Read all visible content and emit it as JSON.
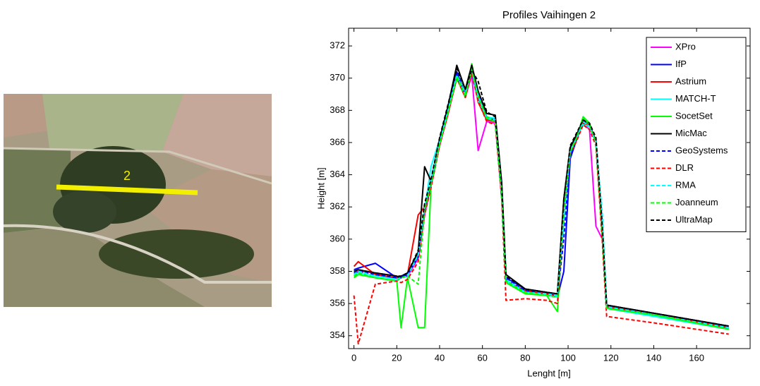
{
  "image": {
    "label": "2"
  },
  "chart_data": {
    "type": "line",
    "title": "Profiles Vaihingen 2",
    "xlabel": "Lenght [m]",
    "ylabel": "Height [m]",
    "xlim": [
      -2.5,
      185
    ],
    "xticks": [
      0,
      20,
      40,
      60,
      80,
      100,
      120,
      140,
      160
    ],
    "ylim": [
      353.2,
      373.1
    ],
    "yticks": [
      354,
      356,
      358,
      360,
      362,
      364,
      366,
      368,
      370,
      372
    ],
    "legend": "upper right",
    "x": [
      0,
      2,
      10,
      20,
      22,
      25,
      30,
      33,
      36,
      40,
      44,
      48,
      52,
      55,
      58,
      62,
      66,
      69,
      71,
      80,
      90,
      95,
      98,
      101,
      104,
      107,
      110,
      113,
      116,
      118,
      140,
      175
    ],
    "series": [
      {
        "name": "XPro",
        "color": "#ff00ff",
        "linestyle": "solid",
        "values": [
          357.8,
          358,
          357.9,
          357.5,
          357.6,
          357.7,
          358.8,
          361.5,
          363.4,
          365.8,
          367.8,
          370,
          368.8,
          370.2,
          365.5,
          367.3,
          367.2,
          362.5,
          357.4,
          356.8,
          356.6,
          356.5,
          361.5,
          365.3,
          366.2,
          367.2,
          366.8,
          360.8,
          360,
          355.8,
          355.3,
          354.5
        ]
      },
      {
        "name": "IfP",
        "color": "#0000ff",
        "linestyle": "solid",
        "values": [
          358.1,
          358.2,
          358.5,
          357.6,
          357.7,
          357.9,
          358.9,
          361.8,
          363.4,
          365.9,
          368.1,
          370.4,
          369,
          370.5,
          368.8,
          367.6,
          367.4,
          363.2,
          357.6,
          356.9,
          356.7,
          356.4,
          358,
          365,
          366.2,
          367.4,
          367.1,
          366,
          360.5,
          355.9,
          355.4,
          354.6
        ]
      },
      {
        "name": "Astrium",
        "color": "#ff0000",
        "linestyle": "solid",
        "values": [
          358.3,
          358.6,
          357.8,
          357.6,
          357.6,
          357.8,
          361.5,
          362,
          363.5,
          366,
          368,
          370.2,
          369.1,
          370.4,
          368.5,
          367.4,
          367.3,
          363,
          357.3,
          356.8,
          356.6,
          356.4,
          362.2,
          365.6,
          366.3,
          367.2,
          367,
          366,
          360,
          355.8,
          355.3,
          354.5
        ]
      },
      {
        "name": "MATCH-T",
        "color": "#00ffff",
        "linestyle": "solid",
        "values": [
          357.7,
          357.9,
          357.7,
          357.5,
          357.6,
          357.8,
          359,
          361.8,
          364.5,
          366.2,
          368.1,
          370.2,
          369.1,
          370.5,
          368.6,
          367.6,
          367.5,
          363.2,
          357.4,
          356.7,
          356.5,
          356.4,
          361,
          365.5,
          366.3,
          367.1,
          367,
          366,
          361,
          355.7,
          355.2,
          354.4
        ]
      },
      {
        "name": "SocetSet",
        "color": "#00ff00",
        "linestyle": "solid",
        "values": [
          357.6,
          357.8,
          357.6,
          357.4,
          354.5,
          357.6,
          354.5,
          354.5,
          363.3,
          365.9,
          367.9,
          370,
          368.8,
          370.9,
          368.9,
          367.6,
          367.3,
          362.8,
          357.3,
          356.6,
          356.5,
          355.5,
          361.8,
          365.4,
          366.3,
          367.6,
          367.2,
          366,
          360,
          355.7,
          355.3,
          354.4
        ]
      },
      {
        "name": "MicMac",
        "color": "#000000",
        "linestyle": "solid",
        "values": [
          358,
          358.1,
          357.9,
          357.7,
          357.6,
          357.9,
          359.2,
          364.5,
          363.6,
          366.2,
          368.3,
          370.8,
          369.3,
          370.8,
          369.2,
          367.8,
          367.7,
          363.5,
          357.8,
          356.9,
          356.7,
          356.6,
          362.5,
          365.7,
          366.5,
          367.4,
          367.1,
          366.1,
          360.5,
          355.9,
          355.4,
          354.6
        ]
      },
      {
        "name": "GeoSystems",
        "color": "#0000ff",
        "linestyle": "dashed",
        "values": [
          357.9,
          358,
          357.8,
          357.6,
          357.6,
          357.8,
          358.9,
          361.9,
          363.5,
          366,
          368,
          370.3,
          369,
          370.5,
          369,
          367.5,
          367.4,
          363,
          357.5,
          356.8,
          356.6,
          356.5,
          360,
          365.2,
          366.3,
          367.3,
          367,
          366,
          360.5,
          355.8,
          355.3,
          354.5
        ]
      },
      {
        "name": "DLR",
        "color": "#ff0000",
        "linestyle": "dashed",
        "values": [
          356.5,
          353.5,
          357.2,
          357.4,
          357.3,
          357.5,
          358.6,
          361.5,
          363.2,
          365.8,
          367.8,
          370,
          368.8,
          370.3,
          368.6,
          367.3,
          367.1,
          362.5,
          356.2,
          356.3,
          356.2,
          356,
          361.7,
          365.3,
          366.1,
          367.1,
          366.8,
          365.8,
          359.8,
          355.2,
          354.8,
          354.1
        ]
      },
      {
        "name": "RMA",
        "color": "#00ffff",
        "linestyle": "dashed",
        "values": [
          357.8,
          358,
          357.7,
          357.5,
          357.6,
          357.7,
          359,
          362,
          363.6,
          366,
          368,
          370.2,
          369,
          370.5,
          368.9,
          367.5,
          367.4,
          362.9,
          357.5,
          356.7,
          356.6,
          356.5,
          361.5,
          365.4,
          366.3,
          367.3,
          367,
          366,
          361.5,
          355.8,
          355.3,
          354.5
        ]
      },
      {
        "name": "Joanneum",
        "color": "#00ff00",
        "linestyle": "dashed",
        "values": [
          357.7,
          357.9,
          357.6,
          357.4,
          357.6,
          357.7,
          357.2,
          361.8,
          363.4,
          365.9,
          367.9,
          370.1,
          368.9,
          370.5,
          368.9,
          367.5,
          367.3,
          362.8,
          357.4,
          356.7,
          356.5,
          356.4,
          361.7,
          365.4,
          366.3,
          367.5,
          367.1,
          366,
          360.2,
          355.7,
          355.3,
          354.4
        ]
      },
      {
        "name": "UltraMap",
        "color": "#000000",
        "linestyle": "dashed",
        "values": [
          358,
          358.1,
          357.9,
          357.7,
          357.7,
          357.9,
          359.3,
          362.2,
          363.7,
          366.3,
          368.4,
          370.6,
          369.3,
          370.5,
          369.8,
          367.9,
          367.6,
          363.4,
          357.7,
          356.9,
          356.7,
          356.6,
          362.5,
          365.8,
          366.6,
          367.4,
          367.2,
          366.3,
          360.8,
          355.9,
          355.4,
          354.6
        ]
      }
    ]
  }
}
